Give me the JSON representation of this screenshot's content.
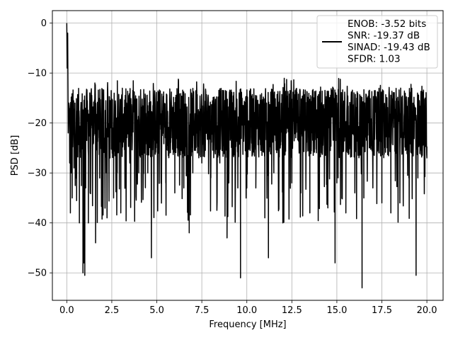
{
  "chart_data": {
    "type": "line",
    "xlabel": "Frequency [MHz]",
    "ylabel": "PSD [dB]",
    "xlim": [
      -0.8,
      20.9
    ],
    "ylim": [
      -55.5,
      2.5
    ],
    "xticks": [
      0.0,
      2.5,
      5.0,
      7.5,
      10.0,
      12.5,
      15.0,
      17.5,
      20.0
    ],
    "xtick_labels": [
      "0.0",
      "2.5",
      "5.0",
      "7.5",
      "10.0",
      "12.5",
      "15.0",
      "17.5",
      "20.0"
    ],
    "yticks": [
      0,
      -10,
      -20,
      -30,
      -40,
      -50
    ],
    "ytick_labels": [
      "0",
      "−10",
      "−20",
      "−30",
      "−40",
      "−50"
    ],
    "grid": true,
    "legend_position": "top-right",
    "legend_lines": [
      "ENOB: -3.52 bits",
      "SNR: -19.37 dB",
      "SINAD: -19.43 dB",
      "SFDR: 1.03"
    ],
    "series": [
      {
        "color": "#000000",
        "x": [
          0.0,
          0.02,
          0.05,
          0.08,
          0.12,
          0.16,
          0.2,
          0.25,
          0.3,
          0.35,
          0.4,
          0.45,
          0.5,
          0.6,
          0.7,
          0.8,
          0.9,
          0.95,
          1.0,
          1.05,
          1.2,
          1.4,
          1.6,
          1.8,
          2.0,
          2.2,
          2.4,
          2.6,
          2.8,
          3.0,
          3.5,
          4.0,
          4.5,
          4.7,
          5.0,
          5.5,
          6.0,
          6.5,
          6.8,
          7.0,
          7.5,
          8.0,
          8.5,
          8.9,
          9.0,
          9.5,
          9.65,
          10.0,
          10.5,
          11.0,
          11.2,
          11.5,
          12.0,
          12.5,
          13.0,
          13.5,
          14.0,
          14.5,
          14.9,
          15.0,
          15.5,
          16.0,
          16.4,
          16.5,
          17.0,
          17.5,
          18.0,
          18.5,
          19.0,
          19.4,
          19.5,
          20.0
        ],
        "y": [
          0.0,
          -9.0,
          -2.0,
          -22.0,
          -16.0,
          -28.0,
          -38.0,
          -30.0,
          -35.0,
          -20.0,
          -29.0,
          -16.0,
          -31.0,
          -23.0,
          -40.0,
          -26.0,
          -50.0,
          -48.0,
          -50.5,
          -33.0,
          -40.0,
          -21.0,
          -44.0,
          -23.0,
          -33.0,
          -30.0,
          -27.0,
          -35.0,
          -30.0,
          -38.0,
          -28.0,
          -30.0,
          -30.0,
          -47.0,
          -24.0,
          -32.0,
          -34.0,
          -33.0,
          -42.0,
          -30.0,
          -28.0,
          -31.0,
          -28.0,
          -43.0,
          -32.0,
          -33.0,
          -51.0,
          -33.0,
          -33.0,
          -39.0,
          -47.0,
          -30.0,
          -40.0,
          -32.0,
          -34.0,
          -38.0,
          -31.0,
          -37.0,
          -48.0,
          -32.0,
          -38.0,
          -34.0,
          -53.0,
          -35.0,
          -33.0,
          -36.0,
          -38.0,
          -36.0,
          -31.0,
          -50.5,
          -31.0,
          -27.0
        ]
      }
    ]
  }
}
